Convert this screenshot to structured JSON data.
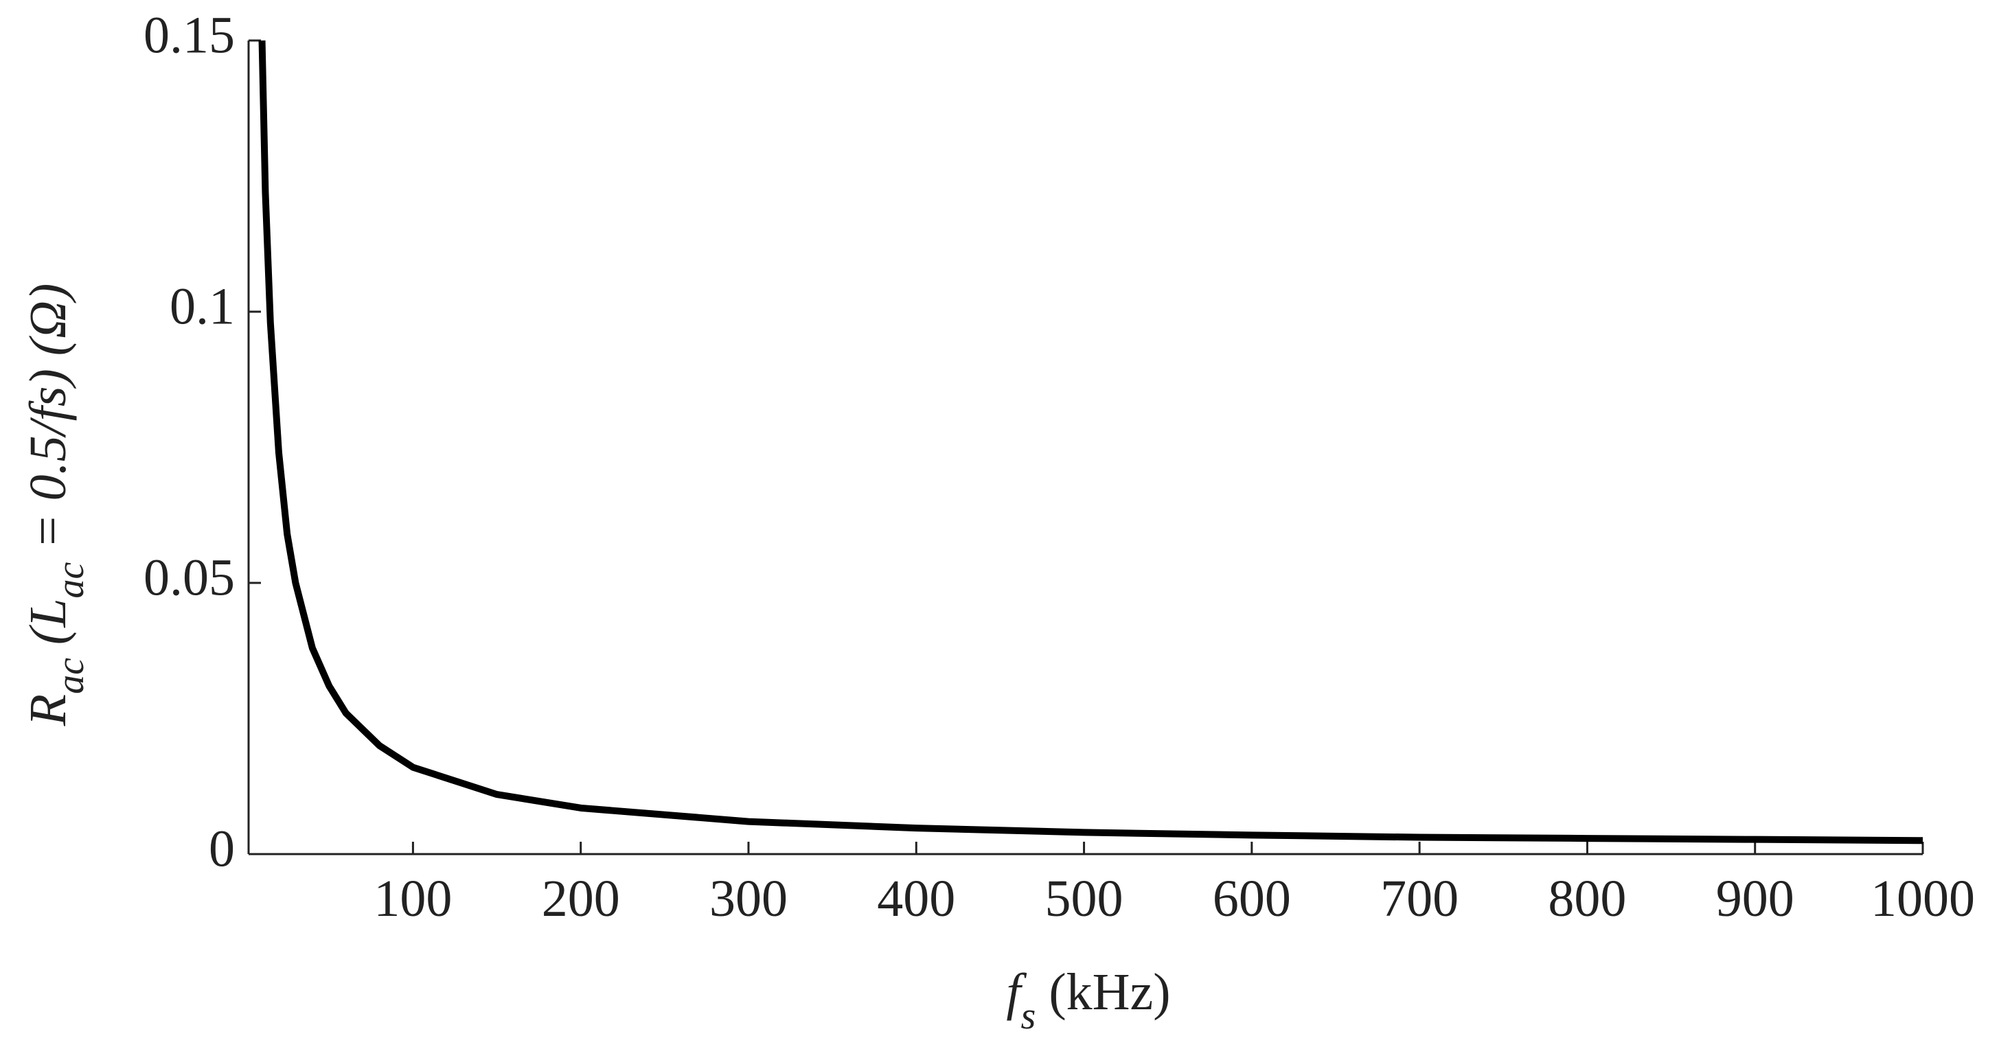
{
  "chart_data": {
    "type": "line",
    "xlabel": [
      "f",
      "s",
      " (kHz)"
    ],
    "ylabel": [
      "R",
      "ac",
      " (L",
      "ac",
      " = 0.5/fs) (Ω)"
    ],
    "x": [
      10,
      12,
      15,
      20,
      25,
      30,
      40,
      50,
      60,
      80,
      100,
      150,
      200,
      300,
      400,
      500,
      600,
      700,
      800,
      900,
      1000
    ],
    "series": [
      {
        "color": "#000000",
        "values": [
          0.15,
          0.122,
          0.098,
          0.074,
          0.059,
          0.05,
          0.038,
          0.031,
          0.026,
          0.02,
          0.016,
          0.011,
          0.0085,
          0.006,
          0.0048,
          0.004,
          0.0035,
          0.0031,
          0.0029,
          0.0027,
          0.0025
        ]
      }
    ],
    "xlim": [
      2,
      1000
    ],
    "ylim": [
      0,
      0.15
    ],
    "xticks": [
      100,
      200,
      300,
      400,
      500,
      600,
      700,
      800,
      900,
      1000
    ],
    "yticks": [
      0,
      0.05,
      0.1,
      0.15
    ]
  }
}
